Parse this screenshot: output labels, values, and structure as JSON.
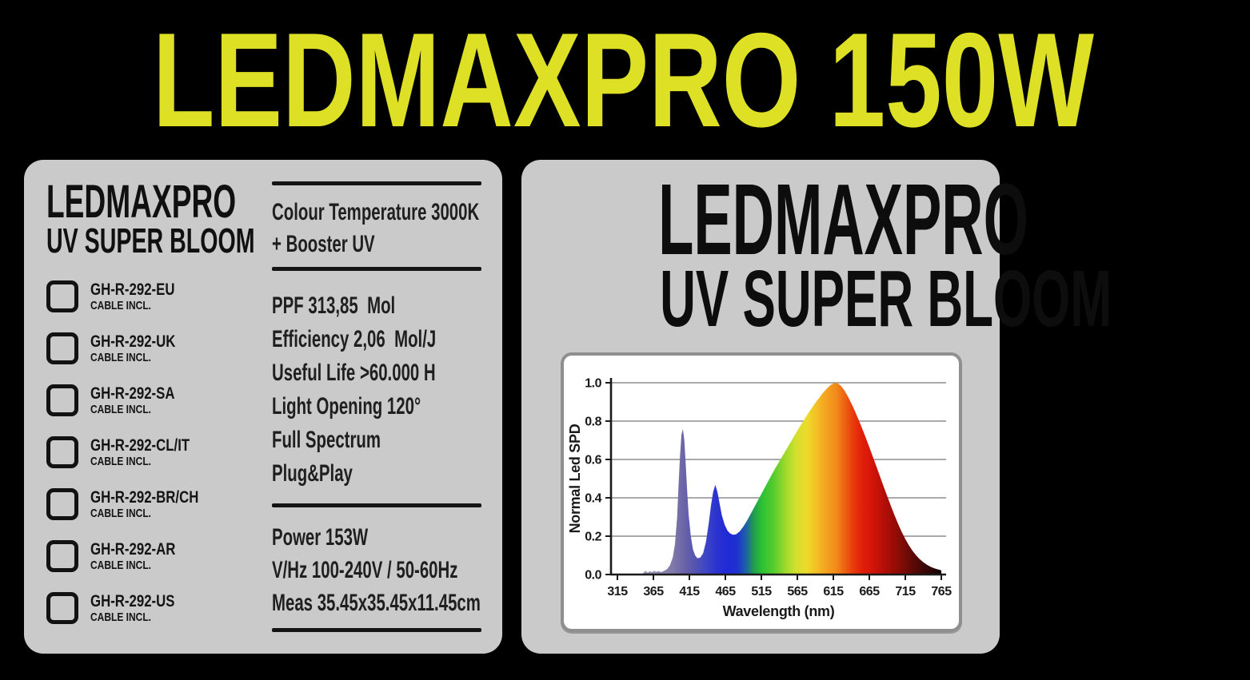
{
  "title": "LEDMAXPRO 150W",
  "colors": {
    "background": "#000000",
    "title_yellow": "#dde024",
    "panel_gray": "#cacaca",
    "text_black": "#141414",
    "chart_border_gray": "#8f8f8f",
    "gridline_gray": "#8e8e8e"
  },
  "left_panel": {
    "product_name_line1": "LEDMAXPRO",
    "product_name_line2": "UV SUPER BLOOM",
    "models": [
      {
        "code": "GH-R-292-EU",
        "note": "CABLE INCL.",
        "checked": false
      },
      {
        "code": "GH-R-292-UK",
        "note": "CABLE INCL.",
        "checked": false
      },
      {
        "code": "GH-R-292-SA",
        "note": "CABLE INCL.",
        "checked": false
      },
      {
        "code": "GH-R-292-CL/IT",
        "note": "CABLE INCL.",
        "checked": false
      },
      {
        "code": "GH-R-292-BR/CH",
        "note": "CABLE INCL.",
        "checked": false
      },
      {
        "code": "GH-R-292-AR",
        "note": "CABLE INCL.",
        "checked": false
      },
      {
        "code": "GH-R-292-US",
        "note": "CABLE INCL.",
        "checked": false
      }
    ],
    "specs_header": [
      "Colour Temperature 3000K",
      "+ Booster UV"
    ],
    "specs": [
      "PPF 313,85  Mol",
      "Efficiency 2,06  Mol/J",
      "Useful Life >60.000 H",
      "Light Opening 120°",
      "Full Spectrum",
      "Plug&Play"
    ],
    "power_specs": [
      "Power 153W",
      "V/Hz 100-240V / 50-60Hz",
      "Meas 35.45x35.45x11.45cm"
    ]
  },
  "right_panel": {
    "product_name_line1": "LEDMAXPRO",
    "product_name_line2": "UV SUPER BLOOM"
  },
  "chart_data": {
    "type": "area",
    "title": "",
    "xlabel": "Wavelength (nm)",
    "ylabel": "Normal Led SPD",
    "xlim": [
      315,
      765
    ],
    "ylim": [
      0.0,
      1.0
    ],
    "x_ticks": [
      315,
      365,
      415,
      465,
      515,
      565,
      615,
      665,
      715,
      765
    ],
    "y_ticks": [
      0.0,
      0.2,
      0.4,
      0.6,
      0.8,
      1.0
    ],
    "grid": "horizontal",
    "legend": "none",
    "description": "Normalized LED spectral power distribution: violet peak ~0.76 at 405nm, blue peak ~0.47 at 450nm, broad phosphor peak 1.0 at ~618nm",
    "points": [
      [
        315,
        0.002
      ],
      [
        340,
        0.002
      ],
      [
        350,
        0.004
      ],
      [
        354,
        0.02
      ],
      [
        357,
        0.01
      ],
      [
        360,
        0.018
      ],
      [
        363,
        0.012
      ],
      [
        366,
        0.02
      ],
      [
        369,
        0.014
      ],
      [
        372,
        0.018
      ],
      [
        376,
        0.013
      ],
      [
        380,
        0.02
      ],
      [
        384,
        0.028
      ],
      [
        388,
        0.048
      ],
      [
        392,
        0.09
      ],
      [
        395,
        0.16
      ],
      [
        398,
        0.3
      ],
      [
        400,
        0.47
      ],
      [
        402,
        0.62
      ],
      [
        404,
        0.73
      ],
      [
        406,
        0.758
      ],
      [
        408,
        0.7
      ],
      [
        410,
        0.57
      ],
      [
        412,
        0.43
      ],
      [
        414,
        0.31
      ],
      [
        417,
        0.2
      ],
      [
        420,
        0.13
      ],
      [
        423,
        0.1
      ],
      [
        426,
        0.085
      ],
      [
        430,
        0.088
      ],
      [
        434,
        0.11
      ],
      [
        438,
        0.17
      ],
      [
        442,
        0.27
      ],
      [
        445,
        0.36
      ],
      [
        448,
        0.43
      ],
      [
        451,
        0.468
      ],
      [
        454,
        0.43
      ],
      [
        457,
        0.37
      ],
      [
        460,
        0.31
      ],
      [
        464,
        0.26
      ],
      [
        468,
        0.228
      ],
      [
        472,
        0.213
      ],
      [
        476,
        0.207
      ],
      [
        480,
        0.21
      ],
      [
        485,
        0.225
      ],
      [
        490,
        0.25
      ],
      [
        495,
        0.28
      ],
      [
        500,
        0.315
      ],
      [
        505,
        0.35
      ],
      [
        510,
        0.385
      ],
      [
        515,
        0.42
      ],
      [
        520,
        0.455
      ],
      [
        525,
        0.49
      ],
      [
        530,
        0.525
      ],
      [
        535,
        0.558
      ],
      [
        540,
        0.59
      ],
      [
        545,
        0.622
      ],
      [
        550,
        0.654
      ],
      [
        555,
        0.686
      ],
      [
        560,
        0.718
      ],
      [
        565,
        0.75
      ],
      [
        570,
        0.78
      ],
      [
        575,
        0.81
      ],
      [
        580,
        0.84
      ],
      [
        585,
        0.868
      ],
      [
        590,
        0.895
      ],
      [
        595,
        0.92
      ],
      [
        600,
        0.945
      ],
      [
        605,
        0.966
      ],
      [
        610,
        0.984
      ],
      [
        614,
        0.994
      ],
      [
        618,
        1.0
      ],
      [
        622,
        0.995
      ],
      [
        626,
        0.982
      ],
      [
        630,
        0.962
      ],
      [
        635,
        0.93
      ],
      [
        640,
        0.893
      ],
      [
        645,
        0.852
      ],
      [
        650,
        0.808
      ],
      [
        655,
        0.762
      ],
      [
        660,
        0.714
      ],
      [
        665,
        0.664
      ],
      [
        670,
        0.613
      ],
      [
        675,
        0.562
      ],
      [
        680,
        0.51
      ],
      [
        685,
        0.458
      ],
      [
        690,
        0.407
      ],
      [
        695,
        0.357
      ],
      [
        700,
        0.309
      ],
      [
        705,
        0.264
      ],
      [
        710,
        0.222
      ],
      [
        715,
        0.185
      ],
      [
        720,
        0.152
      ],
      [
        725,
        0.124
      ],
      [
        730,
        0.1
      ],
      [
        735,
        0.08
      ],
      [
        740,
        0.064
      ],
      [
        745,
        0.051
      ],
      [
        750,
        0.041
      ],
      [
        755,
        0.033
      ],
      [
        760,
        0.027
      ],
      [
        765,
        0.022
      ]
    ],
    "gradient_stops": [
      {
        "wl": 315,
        "color": "#a39db9"
      },
      {
        "wl": 368,
        "color": "#958fb3"
      },
      {
        "wl": 392,
        "color": "#8079a9"
      },
      {
        "wl": 406,
        "color": "#6c66a7"
      },
      {
        "wl": 420,
        "color": "#5956ae"
      },
      {
        "wl": 436,
        "color": "#4147c2"
      },
      {
        "wl": 452,
        "color": "#2c34d0"
      },
      {
        "wl": 468,
        "color": "#2029d6"
      },
      {
        "wl": 482,
        "color": "#1e33cf"
      },
      {
        "wl": 494,
        "color": "#1e63a4"
      },
      {
        "wl": 504,
        "color": "#219b4e"
      },
      {
        "wl": 516,
        "color": "#2cc233"
      },
      {
        "wl": 532,
        "color": "#55cc2e"
      },
      {
        "wl": 548,
        "color": "#9cd92b"
      },
      {
        "wl": 563,
        "color": "#d2e02d"
      },
      {
        "wl": 578,
        "color": "#eeda2b"
      },
      {
        "wl": 593,
        "color": "#f4bc24"
      },
      {
        "wl": 606,
        "color": "#f4a01f"
      },
      {
        "wl": 618,
        "color": "#f28c1c"
      },
      {
        "wl": 629,
        "color": "#ee6912"
      },
      {
        "wl": 641,
        "color": "#e93f0d"
      },
      {
        "wl": 655,
        "color": "#e21e0a"
      },
      {
        "wl": 671,
        "color": "#d01409"
      },
      {
        "wl": 688,
        "color": "#ae0e07"
      },
      {
        "wl": 706,
        "color": "#8b0c06"
      },
      {
        "wl": 724,
        "color": "#600906"
      },
      {
        "wl": 742,
        "color": "#3a0705"
      },
      {
        "wl": 755,
        "color": "#250505"
      },
      {
        "wl": 765,
        "color": "#150303"
      }
    ]
  }
}
